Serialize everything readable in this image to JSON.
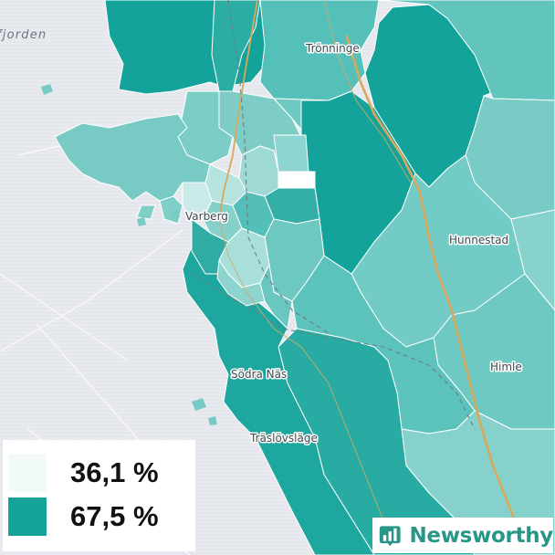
{
  "map": {
    "water_label": "fjorden",
    "places": [
      "Trönninge",
      "Varberg",
      "Hunnestad",
      "Himle",
      "Södra Näs",
      "Träslövsläge"
    ]
  },
  "legend": {
    "items": [
      {
        "value": "36,1 %",
        "color": "#f3fbfa"
      },
      {
        "value": "67,5 %",
        "color": "#13a39a"
      }
    ]
  },
  "brand": {
    "name": "Newsworthy",
    "color": "#2a9688"
  }
}
